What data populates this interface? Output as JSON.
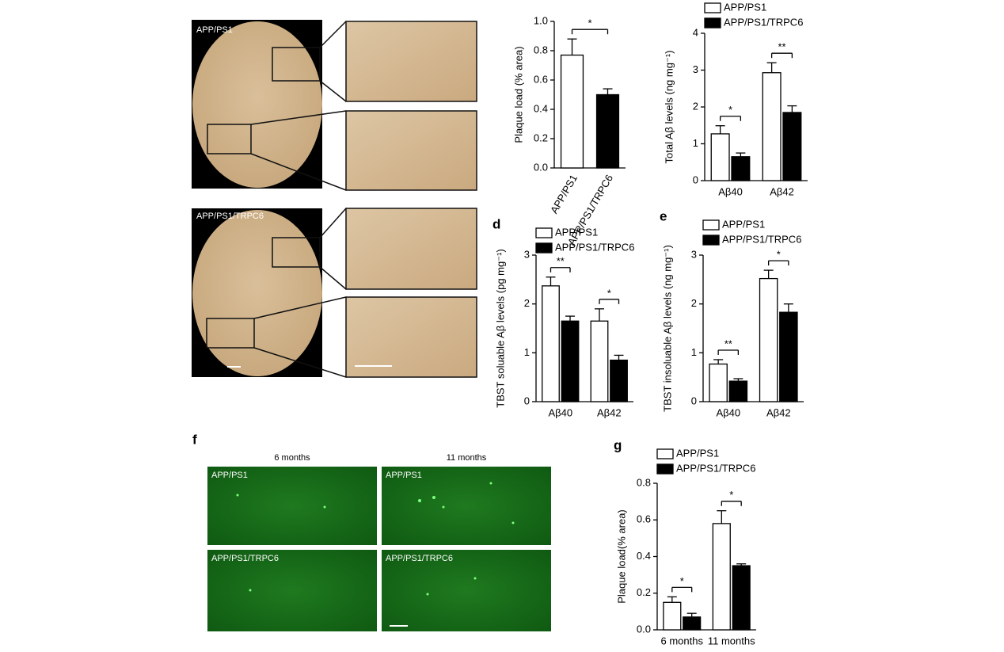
{
  "chart_data": [
    {
      "type": "bar",
      "ylabel": "Plaque load (% area)",
      "categories": [
        "APP/PS1",
        "APP/PS1/TRPC6"
      ],
      "values": [
        0.77,
        0.5
      ],
      "errors": [
        0.11,
        0.04
      ],
      "colors": [
        "#ffffff",
        "#000000"
      ],
      "annotation": "*",
      "ylim": [
        0,
        1.0
      ],
      "yticks": [
        {
          "value": 0,
          "label": "0.0"
        },
        {
          "value": 0.2,
          "label": "0.2"
        },
        {
          "value": 0.4,
          "label": "0.4"
        },
        {
          "value": 0.6,
          "label": "0.6"
        },
        {
          "value": 0.8,
          "label": "0.8"
        },
        {
          "value": 1.0,
          "label": "1.0"
        }
      ]
    },
    {
      "type": "bar",
      "ylabel": "Total Aβ levels (ng mg⁻¹)",
      "categories": [
        "Aβ40",
        "Aβ42"
      ],
      "series": [
        {
          "name": "APP/PS1",
          "color": "#ffffff",
          "values": [
            1.27,
            2.93
          ],
          "errors": [
            0.22,
            0.27
          ]
        },
        {
          "name": "APP/PS1/TRPC6",
          "color": "#000000",
          "values": [
            0.65,
            1.85
          ],
          "errors": [
            0.1,
            0.18
          ]
        }
      ],
      "significance": [
        "*",
        "**"
      ],
      "ylim": [
        0,
        4
      ],
      "yticks": [
        0,
        1,
        2,
        3,
        4
      ]
    },
    {
      "type": "bar",
      "panel": "d",
      "ylabel": "TBST soluable Aβ levels (pg mg⁻¹)",
      "categories": [
        "Aβ40",
        "Aβ42"
      ],
      "series": [
        {
          "name": "APP/PS1",
          "color": "#ffffff",
          "values": [
            2.37,
            1.65
          ],
          "errors": [
            0.18,
            0.25
          ]
        },
        {
          "name": "APP/PS1/TRPC6",
          "color": "#000000",
          "values": [
            1.65,
            0.85
          ],
          "errors": [
            0.1,
            0.1
          ]
        }
      ],
      "significance": [
        "**",
        "*"
      ],
      "ylim": [
        0,
        3
      ],
      "yticks": [
        0,
        1,
        2,
        3
      ]
    },
    {
      "type": "bar",
      "panel": "e",
      "ylabel": "TBST insoluable Aβ levels (ng mg⁻¹)",
      "categories": [
        "Aβ40",
        "Aβ42"
      ],
      "series": [
        {
          "name": "APP/PS1",
          "color": "#ffffff",
          "values": [
            0.77,
            2.52
          ],
          "errors": [
            0.09,
            0.17
          ]
        },
        {
          "name": "APP/PS1/TRPC6",
          "color": "#000000",
          "values": [
            0.42,
            1.83
          ],
          "errors": [
            0.05,
            0.17
          ]
        }
      ],
      "significance": [
        "**",
        "*"
      ],
      "ylim": [
        0,
        3
      ],
      "yticks": [
        0,
        1,
        2,
        3
      ]
    },
    {
      "type": "bar",
      "panel": "g",
      "ylabel": "Plaque load(% area)",
      "categories": [
        "6 months",
        "11 months"
      ],
      "series": [
        {
          "name": "APP/PS1",
          "color": "#ffffff",
          "values": [
            0.15,
            0.58
          ],
          "errors": [
            0.03,
            0.07
          ]
        },
        {
          "name": "APP/PS1/TRPC6",
          "color": "#000000",
          "values": [
            0.07,
            0.35
          ],
          "errors": [
            0.02,
            0.01
          ]
        }
      ],
      "significance": [
        "*",
        "*"
      ],
      "ylim": [
        0,
        0.8
      ],
      "yticks": [
        {
          "value": 0,
          "label": "0.0"
        },
        {
          "value": 0.2,
          "label": "0.2"
        },
        {
          "value": 0.4,
          "label": "0.4"
        },
        {
          "value": 0.6,
          "label": "0.6"
        },
        {
          "value": 0.8,
          "label": "0.8"
        }
      ]
    }
  ],
  "images": {
    "a": {
      "labels": [
        "APP/PS1",
        "APP/PS1/TRPC6"
      ]
    },
    "f": {
      "panel": "f",
      "columns": [
        "6 months",
        "11 months"
      ],
      "labels": [
        "APP/PS1",
        "APP/PS1",
        "APP/PS1/TRPC6",
        "APP/PS1/TRPC6"
      ]
    }
  }
}
